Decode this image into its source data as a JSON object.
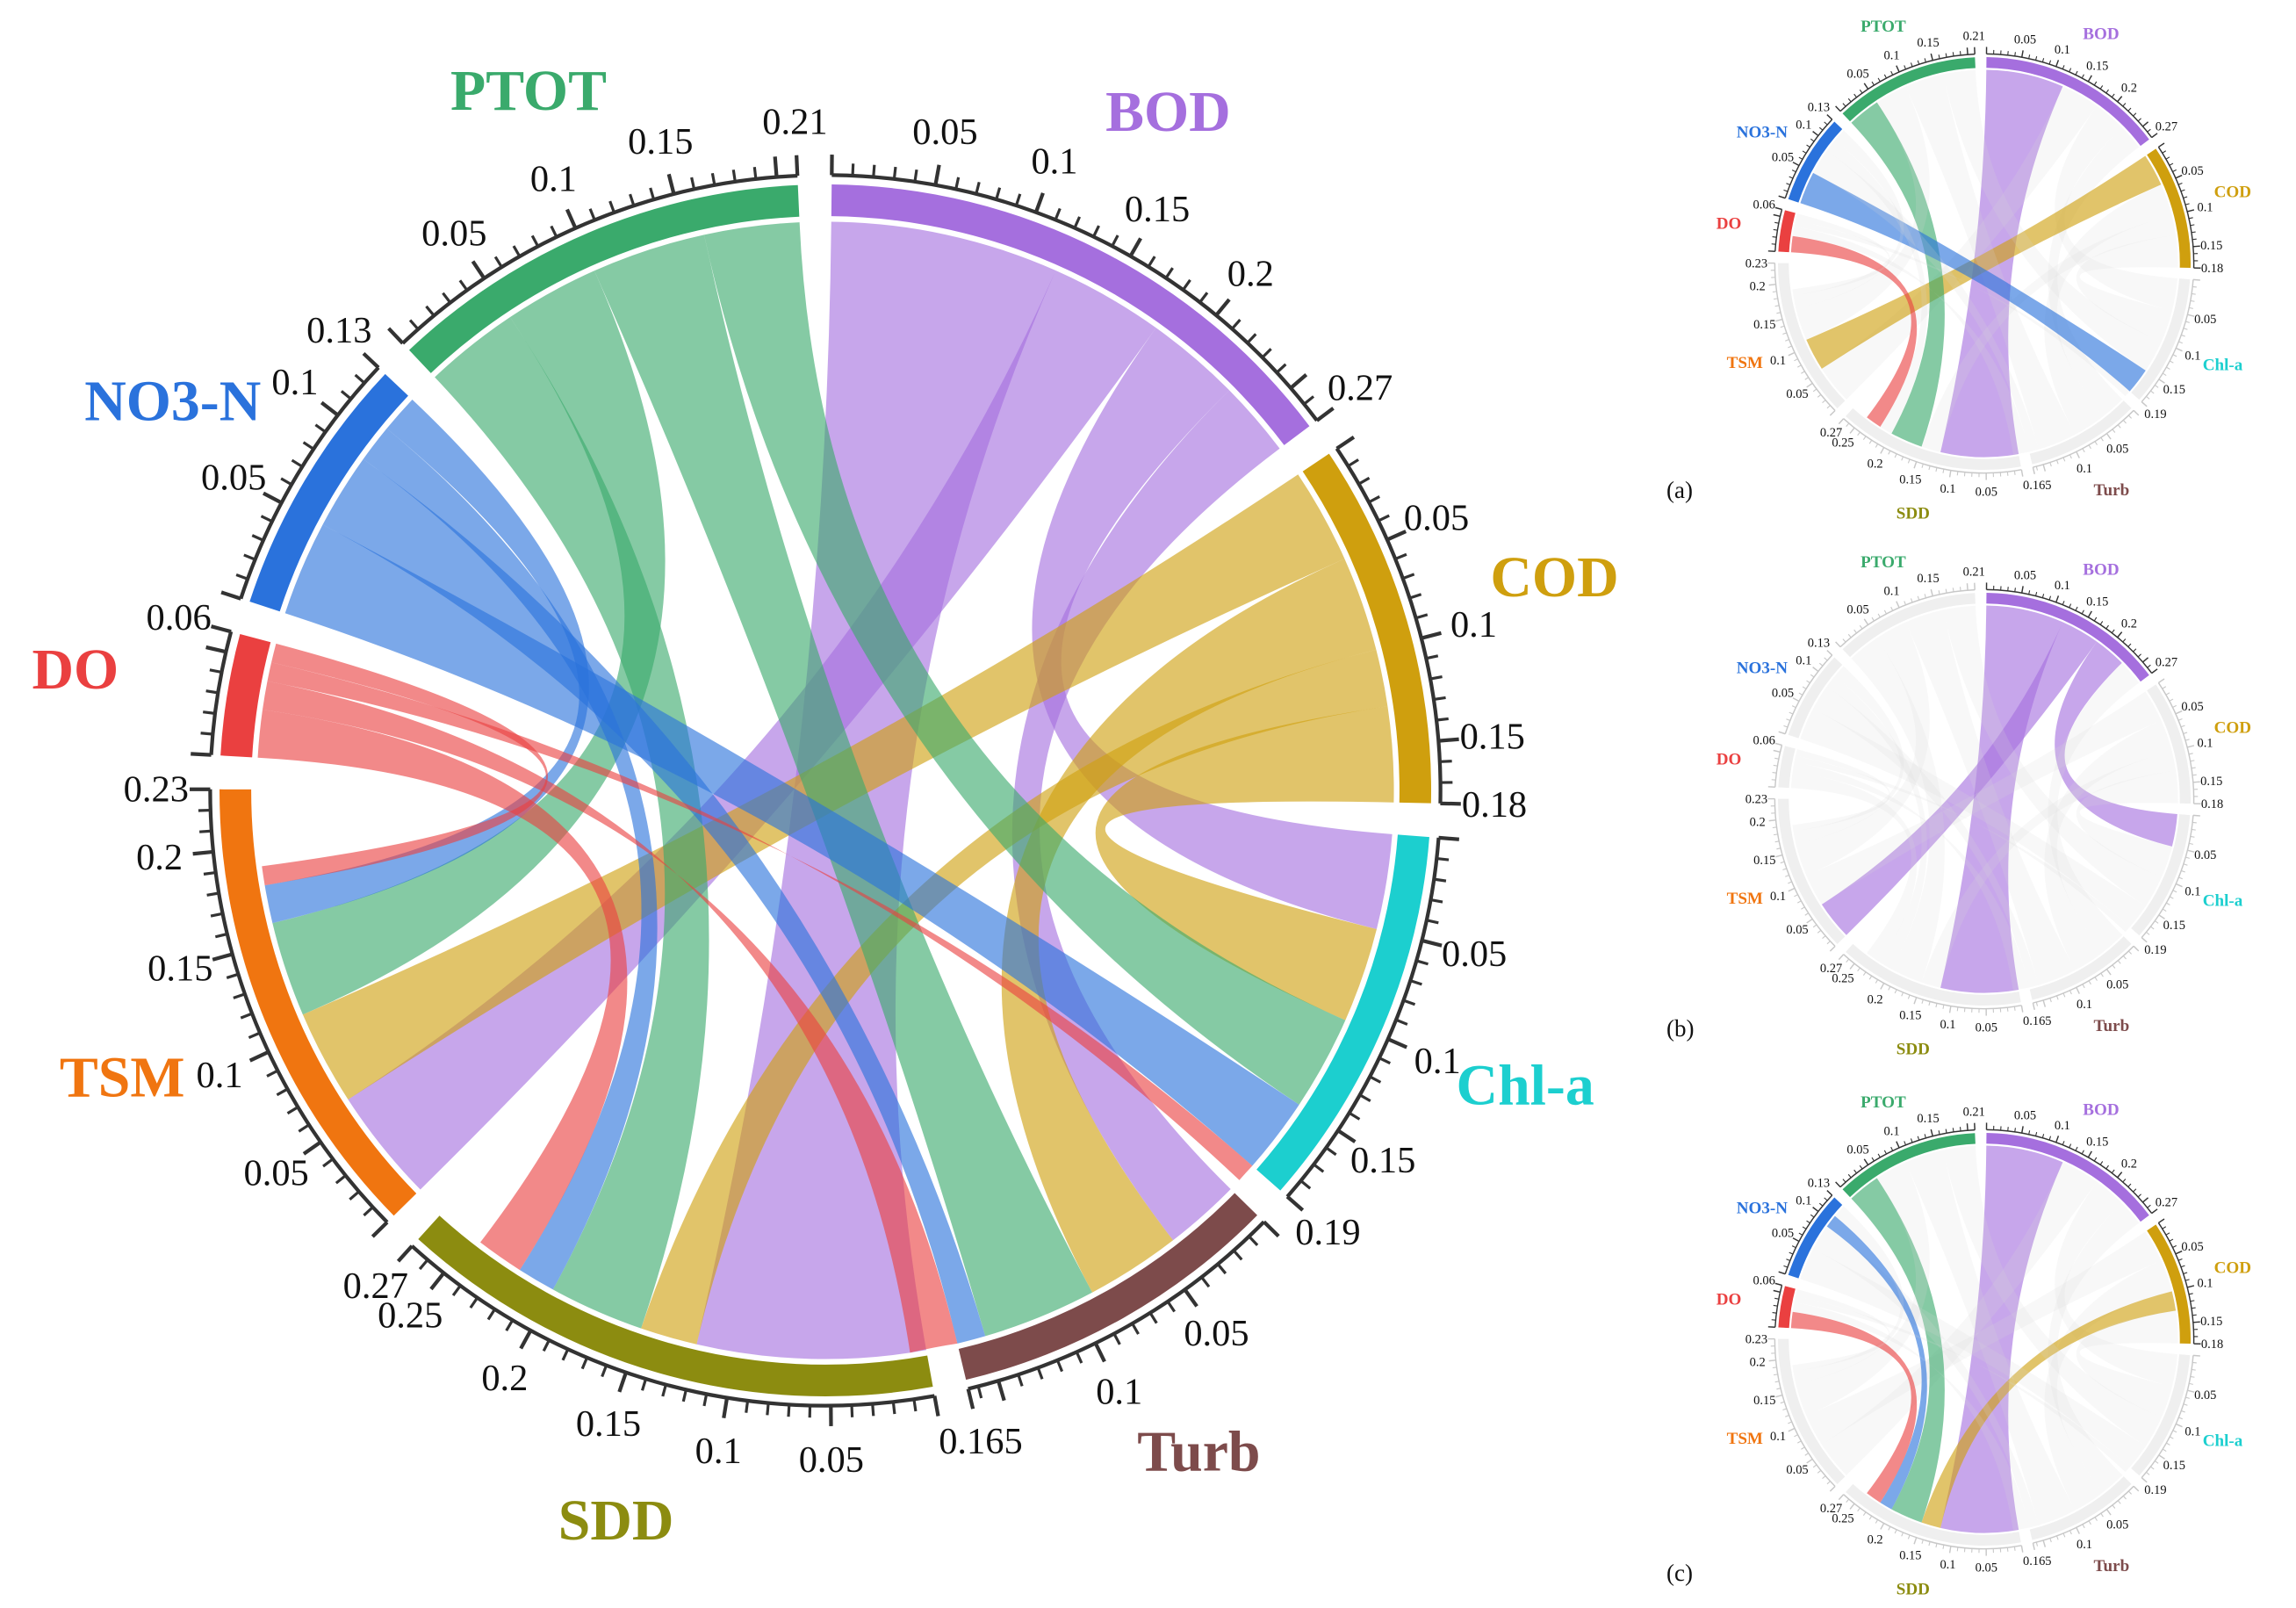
{
  "chart_data": {
    "type": "chord",
    "segments": [
      {
        "name": "BOD",
        "color": "#a56fde",
        "max": 0.27,
        "tick_labels": [
          "0.05",
          "0.1",
          "0.15",
          "0.2",
          "0.27"
        ]
      },
      {
        "name": "COD",
        "color": "#cf9f0e",
        "max": 0.18,
        "tick_labels": [
          "0.05",
          "0.1",
          "0.15",
          "0.18"
        ]
      },
      {
        "name": "Chl-a",
        "color": "#1ccfcf",
        "max": 0.19,
        "tick_labels": [
          "0.05",
          "0.1",
          "0.15",
          "0.19"
        ]
      },
      {
        "name": "Turb",
        "color": "#7d4b4b",
        "max": 0.165,
        "tick_labels": [
          "0.05",
          "0.1",
          "0.165"
        ]
      },
      {
        "name": "SDD",
        "color": "#8c8c10",
        "max": 0.27,
        "tick_labels": [
          "0.05",
          "0.1",
          "0.15",
          "0.2",
          "0.25",
          "0.27"
        ]
      },
      {
        "name": "TSM",
        "color": "#f07510",
        "max": 0.23,
        "tick_labels": [
          "0.05",
          "0.1",
          "0.15",
          "0.2",
          "0.23"
        ]
      },
      {
        "name": "DO",
        "color": "#ea4040",
        "max": 0.06,
        "tick_labels": [
          "0.06"
        ]
      },
      {
        "name": "NO3-N",
        "color": "#2a72dc",
        "max": 0.13,
        "tick_labels": [
          "0.05",
          "0.1",
          "0.13"
        ]
      },
      {
        "name": "PTOT",
        "color": "#3aaa6c",
        "max": 0.21,
        "tick_labels": [
          "0.05",
          "0.1",
          "0.15",
          "0.21"
        ]
      }
    ],
    "links": [
      {
        "source": "BOD",
        "target": "SDD",
        "value": 0.12
      },
      {
        "source": "BOD",
        "target": "TSM",
        "value": 0.06
      },
      {
        "source": "BOD",
        "target": "Chl-a",
        "value": 0.05
      },
      {
        "source": "BOD",
        "target": "Turb",
        "value": 0.04
      },
      {
        "source": "COD",
        "target": "TSM",
        "value": 0.05
      },
      {
        "source": "COD",
        "target": "Turb",
        "value": 0.05
      },
      {
        "source": "COD",
        "target": "SDD",
        "value": 0.03
      },
      {
        "source": "COD",
        "target": "Chl-a",
        "value": 0.05
      },
      {
        "source": "PTOT",
        "target": "SDD",
        "value": 0.05
      },
      {
        "source": "PTOT",
        "target": "TSM",
        "value": 0.05
      },
      {
        "source": "PTOT",
        "target": "Turb",
        "value": 0.06
      },
      {
        "source": "PTOT",
        "target": "Chl-a",
        "value": 0.05
      },
      {
        "source": "NO3-N",
        "target": "Chl-a",
        "value": 0.05
      },
      {
        "source": "NO3-N",
        "target": "Turb",
        "value": 0.04
      },
      {
        "source": "NO3-N",
        "target": "SDD",
        "value": 0.02
      },
      {
        "source": "NO3-N",
        "target": "TSM",
        "value": 0.02
      },
      {
        "source": "DO",
        "target": "SDD",
        "value": 0.025
      },
      {
        "source": "DO",
        "target": "Turb",
        "value": 0.015
      },
      {
        "source": "DO",
        "target": "Chl-a",
        "value": 0.01
      },
      {
        "source": "DO",
        "target": "TSM",
        "value": 0.01
      }
    ],
    "panels": [
      {
        "label": "(a)",
        "highlight": [
          "BOD",
          "COD",
          "PTOT",
          "NO3-N",
          "DO"
        ],
        "links": [
          0,
          4,
          8,
          12,
          16
        ]
      },
      {
        "label": "(b)",
        "highlight": [
          "BOD"
        ],
        "links": [
          0,
          1,
          2
        ]
      },
      {
        "label": "(c)",
        "highlight": [
          "PTOT",
          "NO3-N",
          "DO",
          "COD",
          "BOD"
        ],
        "links": [
          0,
          6,
          8,
          14,
          16
        ]
      }
    ]
  }
}
